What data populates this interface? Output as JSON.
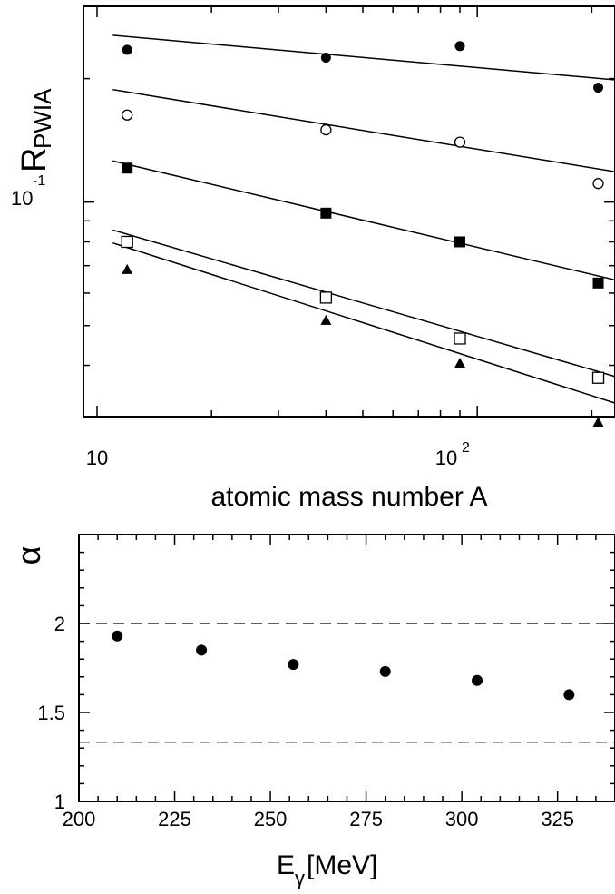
{
  "chart_data": [
    {
      "type": "scatter",
      "yscale": "log",
      "xscale": "log",
      "xlabel": "atomic mass number A",
      "ylabel": {
        "main": "R",
        "sub": "PWIA"
      },
      "xlim": [
        10,
        250
      ],
      "ylim": [
        0.03,
        0.3
      ],
      "x_tick_labels": [
        {
          "value": 10,
          "base": "10",
          "exp": ""
        },
        {
          "value": 100,
          "base": "10",
          "exp": "2"
        }
      ],
      "y_tick_labels": [
        {
          "value": 0.1,
          "base": "10",
          "exp": "-1"
        }
      ],
      "x": [
        12,
        40,
        90,
        208
      ],
      "series": [
        {
          "marker": "filled-circle",
          "values": [
            0.235,
            0.225,
            0.24,
            0.19
          ],
          "fit": [
            0.255,
            0.1985
          ]
        },
        {
          "marker": "open-circle",
          "values": [
            0.163,
            0.15,
            0.14,
            0.111
          ],
          "fit": [
            0.188,
            0.1185
          ]
        },
        {
          "marker": "filled-square",
          "values": [
            0.121,
            0.094,
            0.08,
            0.0635
          ],
          "fit": [
            0.126,
            0.0645
          ]
        },
        {
          "marker": "open-square",
          "values": [
            0.08,
            0.0585,
            0.0465,
            0.0373
          ],
          "fit": [
            0.0855,
            0.0375
          ]
        },
        {
          "marker": "filled-triangle",
          "values": [
            0.0685,
            0.0515,
            0.0405,
            0.0291
          ],
          "fit": [
            0.0795,
            0.0323
          ]
        }
      ]
    },
    {
      "type": "scatter",
      "ylabel": "α",
      "xlabel": {
        "main": "E",
        "sub": "γ",
        "rest": "[MeV]"
      },
      "xlim": [
        200,
        340
      ],
      "ylim": [
        1,
        2.5
      ],
      "x_ticks": [
        "200",
        "225",
        "250",
        "275",
        "300",
        "325"
      ],
      "y_ticks": [
        "1",
        "1.5",
        "2"
      ],
      "x": [
        210,
        232,
        256,
        280,
        304,
        328
      ],
      "values": [
        1.93,
        1.85,
        1.77,
        1.73,
        1.68,
        1.6
      ],
      "reference_lines": [
        2.0,
        1.333
      ]
    }
  ]
}
